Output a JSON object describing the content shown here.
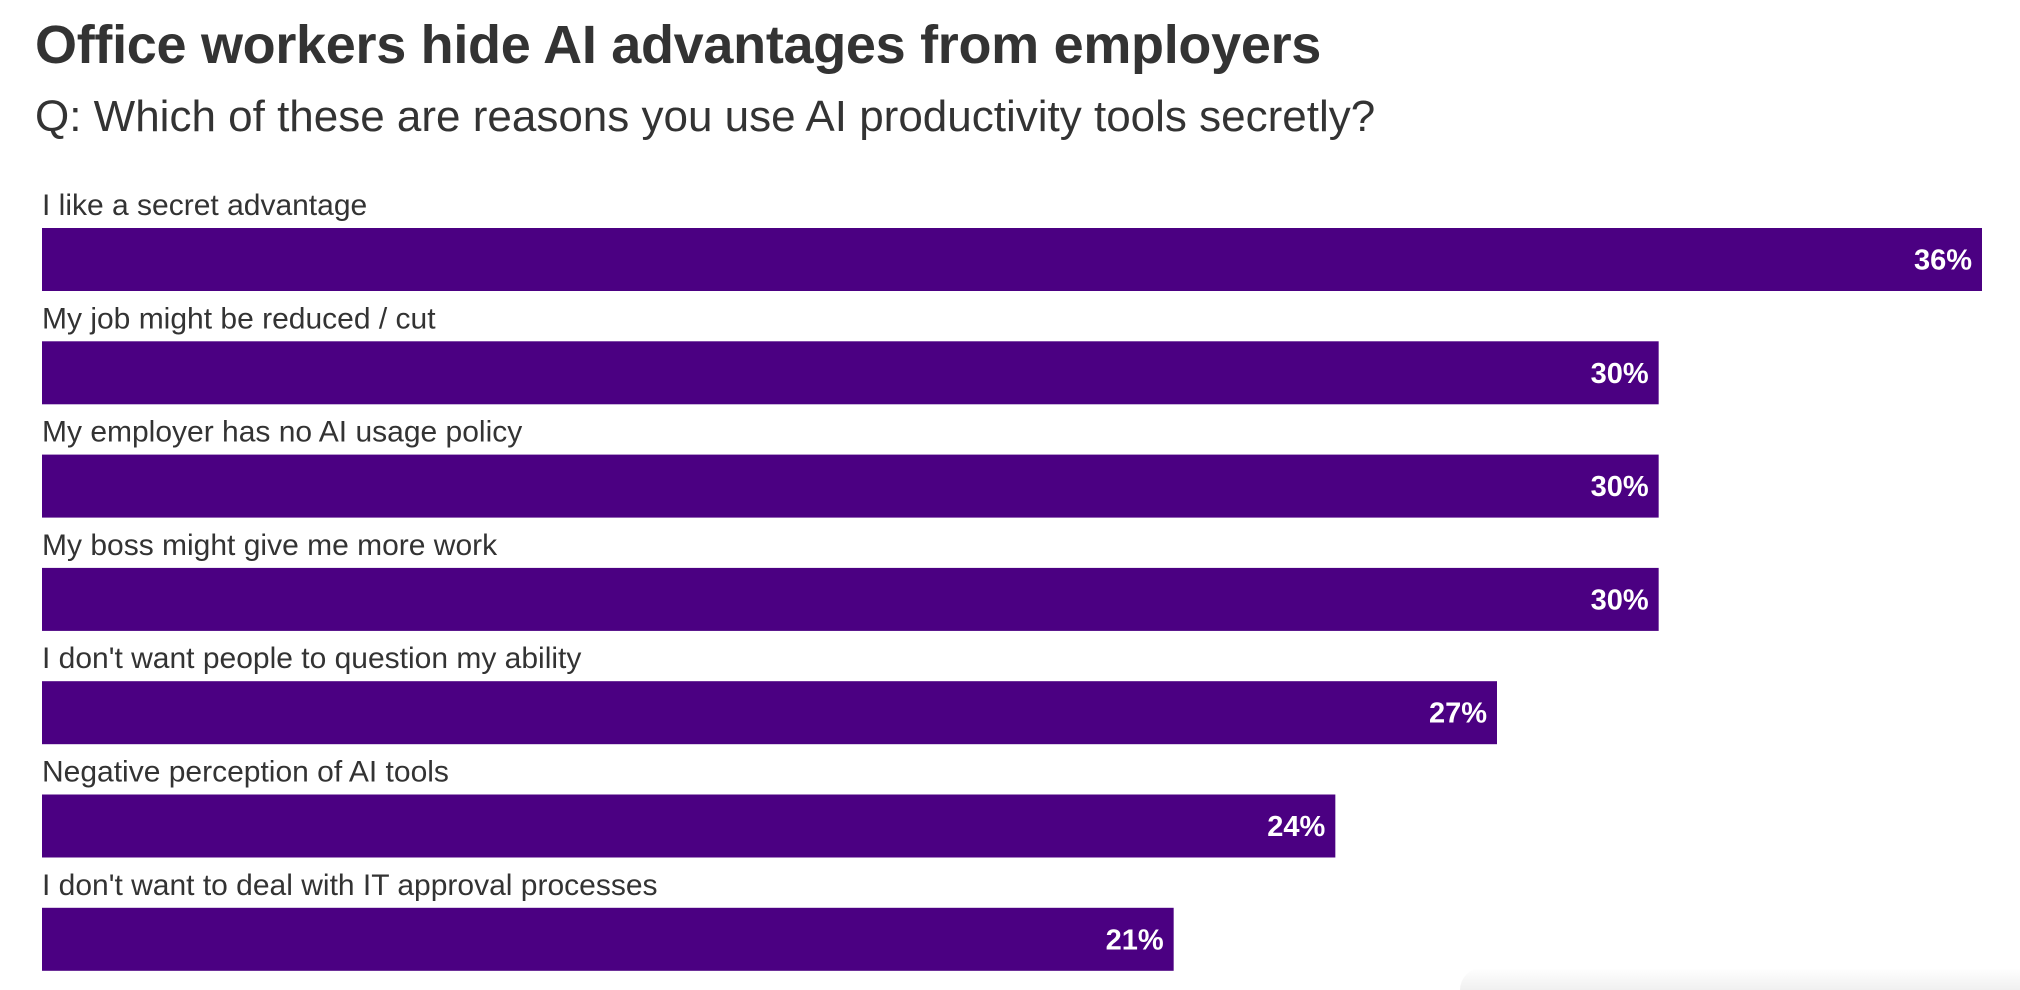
{
  "title": "Office workers hide AI advantages from employers",
  "subtitle": "Q: Which of these are reasons you use AI productivity tools secretly?",
  "colors": {
    "bar": "#4b0082",
    "text": "#333333",
    "value_text": "#ffffff",
    "background": "#ffffff"
  },
  "chart_data": {
    "type": "bar",
    "orientation": "horizontal",
    "categories": [
      "I like a secret advantage",
      "My job might be reduced / cut",
      "My employer has no AI usage policy",
      "My boss might give me more work",
      "I don't want people to question my ability",
      "Negative perception of AI tools",
      "I don't want to deal with IT approval processes"
    ],
    "values": [
      36,
      30,
      30,
      30,
      27,
      24,
      21
    ],
    "value_labels": [
      "36%",
      "30%",
      "30%",
      "30%",
      "27%",
      "24%",
      "21%"
    ],
    "unit": "%",
    "xlim": [
      0,
      36
    ],
    "grid": false,
    "legend": "none"
  }
}
